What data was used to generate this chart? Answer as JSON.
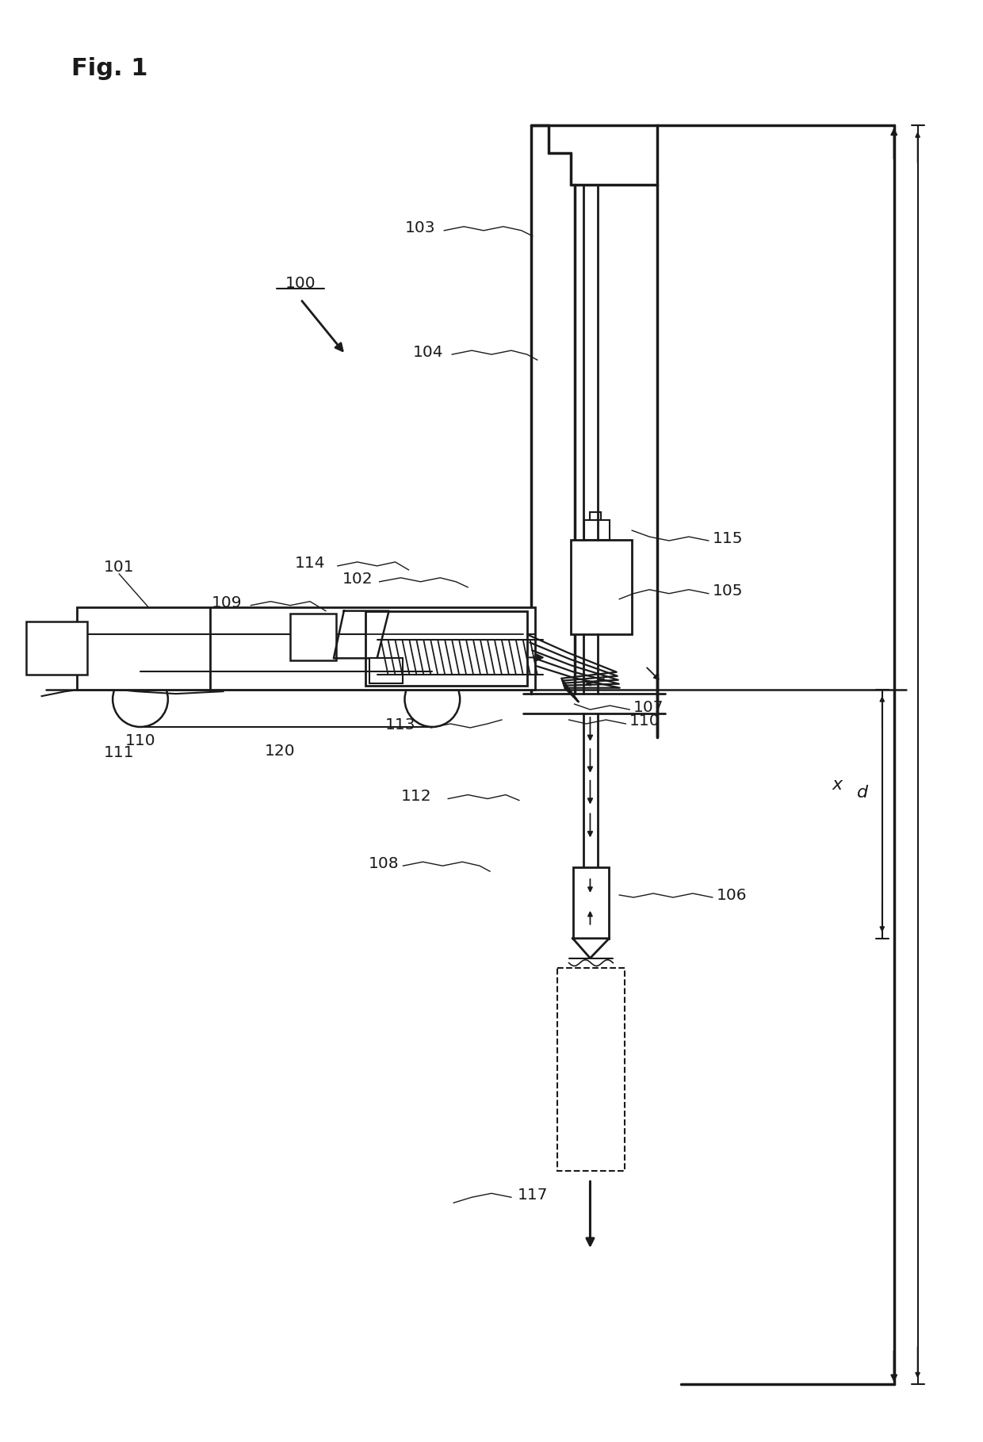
{
  "title": "Fig. 1",
  "bg_color": "#ffffff",
  "lc": "#1a1a1a",
  "fig_width": 12.4,
  "fig_height": 18.19,
  "dpi": 100
}
